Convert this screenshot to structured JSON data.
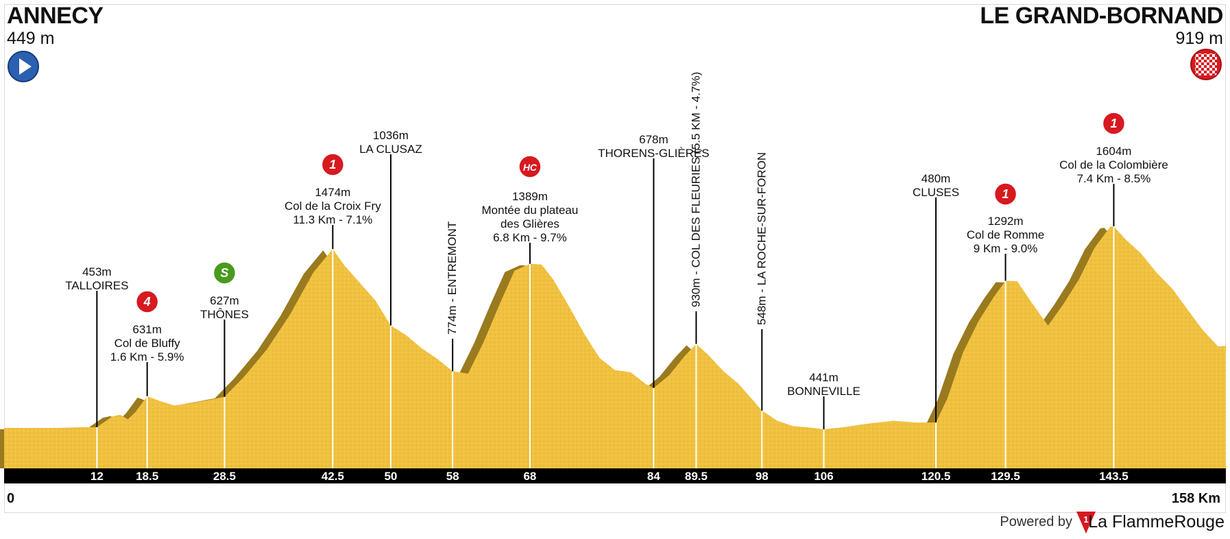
{
  "start": {
    "name": "ANNECY",
    "altitude": "449 m",
    "icon": "play-icon"
  },
  "finish": {
    "name": "LE GRAND-BORNAND",
    "altitude": "919 m",
    "icon": "checkered-flag-icon"
  },
  "distance_axis": {
    "start": "0",
    "end": "158 Km"
  },
  "ticks": [
    "12",
    "18.5",
    "28.5",
    "42.5",
    "50",
    "58",
    "68",
    "84",
    "89.5",
    "98",
    "106",
    "120.5",
    "129.5",
    "143.5"
  ],
  "points": [
    {
      "km": 12,
      "lines": [
        "453m",
        "TALLOIRES"
      ]
    },
    {
      "km": 18.5,
      "lines": [
        "631m",
        "Col de Bluffy",
        "1.6 Km - 5.9%"
      ],
      "badge": "4",
      "badge_color": "#d71920"
    },
    {
      "km": 28.5,
      "lines": [
        "627m",
        "THÔNES"
      ],
      "badge": "S",
      "badge_color": "#4a9a1e"
    },
    {
      "km": 42.5,
      "lines": [
        "1474m",
        "Col de la Croix Fry",
        "11.3 Km - 7.1%"
      ],
      "badge": "1",
      "badge_color": "#d71920"
    },
    {
      "km": 50,
      "lines": [
        "1036m",
        "LA CLUSAZ"
      ]
    },
    {
      "km": 58,
      "vertical": "774m - ENTREMONT"
    },
    {
      "km": 68,
      "lines": [
        "1389m",
        "Montée du plateau",
        "des Glières",
        "6.8 Km - 9.7%"
      ],
      "badge": "HC",
      "badge_color": "#d71920"
    },
    {
      "km": 84,
      "lines": [
        "678m",
        "THORENS-GLIÈRES"
      ]
    },
    {
      "km": 89.5,
      "vertical": "930m - COL DES FLEURIES (5.5 KM - 4.7%)"
    },
    {
      "km": 98,
      "vertical": "548m - LA ROCHE-SUR-FORON"
    },
    {
      "km": 106,
      "lines": [
        "441m",
        "BONNEVILLE"
      ]
    },
    {
      "km": 120.5,
      "lines": [
        "480m",
        "CLUSES"
      ]
    },
    {
      "km": 129.5,
      "lines": [
        "1292m",
        "Col de Romme",
        "9 Km - 9.0%"
      ],
      "badge": "1",
      "badge_color": "#d71920"
    },
    {
      "km": 143.5,
      "lines": [
        "1604m",
        "Col de la Colombière",
        "7.4 Km - 8.5%"
      ],
      "badge": "1",
      "badge_color": "#d71920"
    }
  ],
  "profile": [
    [
      0,
      449
    ],
    [
      7,
      449
    ],
    [
      10,
      453
    ],
    [
      12,
      453
    ],
    [
      14,
      515
    ],
    [
      15,
      525
    ],
    [
      16,
      498
    ],
    [
      17,
      540
    ],
    [
      18.5,
      631
    ],
    [
      20,
      605
    ],
    [
      22,
      578
    ],
    [
      24,
      590
    ],
    [
      26,
      605
    ],
    [
      28.5,
      627
    ],
    [
      31,
      740
    ],
    [
      34,
      900
    ],
    [
      37,
      1100
    ],
    [
      40,
      1340
    ],
    [
      42.5,
      1474
    ],
    [
      44,
      1380
    ],
    [
      46,
      1280
    ],
    [
      48,
      1180
    ],
    [
      50,
      1036
    ],
    [
      52,
      980
    ],
    [
      54,
      905
    ],
    [
      56,
      845
    ],
    [
      58,
      774
    ],
    [
      60,
      760
    ],
    [
      62,
      940
    ],
    [
      64,
      1150
    ],
    [
      66,
      1350
    ],
    [
      68,
      1389
    ],
    [
      69.5,
      1385
    ],
    [
      71,
      1300
    ],
    [
      73,
      1150
    ],
    [
      75,
      990
    ],
    [
      77,
      850
    ],
    [
      79,
      780
    ],
    [
      81,
      768
    ],
    [
      83,
      700
    ],
    [
      84,
      678
    ],
    [
      86,
      750
    ],
    [
      88,
      860
    ],
    [
      89.5,
      930
    ],
    [
      91,
      870
    ],
    [
      93,
      775
    ],
    [
      95,
      700
    ],
    [
      97,
      600
    ],
    [
      98,
      548
    ],
    [
      100,
      490
    ],
    [
      102,
      460
    ],
    [
      104,
      452
    ],
    [
      106,
      441
    ],
    [
      109,
      455
    ],
    [
      112,
      475
    ],
    [
      115,
      490
    ],
    [
      118,
      480
    ],
    [
      120.5,
      480
    ],
    [
      122,
      620
    ],
    [
      124,
      880
    ],
    [
      126,
      1060
    ],
    [
      128,
      1200
    ],
    [
      129.5,
      1292
    ],
    [
      131,
      1290
    ],
    [
      133,
      1160
    ],
    [
      135,
      1035
    ],
    [
      137,
      1160
    ],
    [
      139,
      1300
    ],
    [
      141,
      1480
    ],
    [
      143,
      1600
    ],
    [
      143.5,
      1604
    ],
    [
      145,
      1530
    ],
    [
      147,
      1450
    ],
    [
      149,
      1340
    ],
    [
      151,
      1250
    ],
    [
      153,
      1130
    ],
    [
      155,
      1010
    ],
    [
      157,
      915
    ],
    [
      158,
      919
    ]
  ],
  "credit": {
    "powered": "Powered by",
    "brand": "La FlammeRouge"
  }
}
